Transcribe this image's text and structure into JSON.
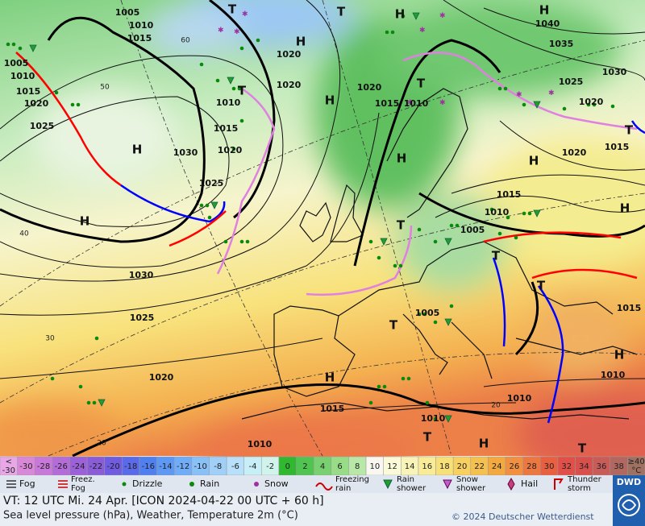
{
  "map": {
    "pressure_labels": [
      "1005",
      "1010",
      "1015",
      "1005",
      "1010",
      "1015",
      "1020",
      "1025",
      "1030",
      "1025",
      "1020",
      "1015",
      "1010",
      "1020",
      "1020",
      "1020",
      "1015",
      "1010",
      "1040",
      "1035",
      "1030",
      "1025",
      "1020",
      "1020",
      "1015",
      "1015",
      "1010",
      "1005",
      "1030",
      "1025",
      "1020",
      "1015",
      "1010",
      "1010",
      "1010",
      "1015",
      "1010",
      "1005"
    ],
    "isotherm_labels": [
      "60",
      "50",
      "40",
      "30",
      "20",
      "20"
    ],
    "pressure_centers": [
      "H",
      "H",
      "T",
      "T",
      "H",
      "H",
      "T",
      "H",
      "T",
      "H",
      "T",
      "H",
      "T",
      "H",
      "H",
      "T",
      "H",
      "T",
      "T",
      "H",
      "H",
      "T",
      "T"
    ]
  },
  "color_scale": {
    "below_symbol": "<",
    "below_value": -30,
    "values": [
      -30,
      -28,
      -26,
      -24,
      -22,
      -20,
      -18,
      -16,
      -14,
      -12,
      -10,
      -8,
      -6,
      -4,
      -2,
      0,
      2,
      4,
      6,
      8,
      10,
      12,
      14,
      16,
      18,
      20,
      22,
      24,
      26,
      28,
      30,
      32,
      34,
      36,
      38
    ],
    "above_value": "≥40",
    "unit": "°C"
  },
  "legend": [
    {
      "lines": [
        "Fog"
      ]
    },
    {
      "lines": [
        "Freez.",
        "Fog"
      ]
    },
    {
      "lines": [
        "Drizzle"
      ]
    },
    {
      "lines": [
        "Rain"
      ]
    },
    {
      "lines": [
        "Snow"
      ]
    },
    {
      "lines": [
        "Freezing",
        "rain"
      ]
    },
    {
      "lines": [
        "Rain",
        "shower"
      ]
    },
    {
      "lines": [
        "Snow",
        "shower"
      ]
    },
    {
      "lines": [
        "Hail"
      ]
    },
    {
      "lines": [
        "Thunder",
        "storm"
      ]
    }
  ],
  "footer": {
    "valid_time": "VT: 12 UTC Mi.  24 Apr. [ICON 2024-04-22  00 UTC + 60 h]",
    "description": "Sea level pressure (hPa), Weather, Temperature 2m (°C)",
    "copyright": "© 2024 Deutscher Wetterdienst",
    "logo": "DWD"
  }
}
